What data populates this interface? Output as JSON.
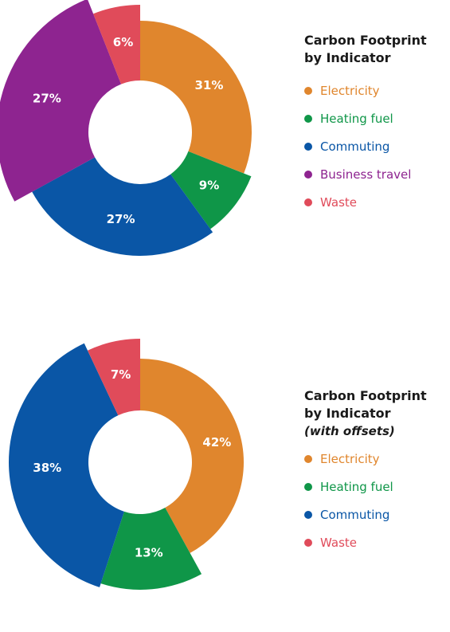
{
  "charts": [
    {
      "title_line1": "Carbon Footprint",
      "title_line2": "by Indicator",
      "subtitle": ""
    },
    {
      "title_line1": "Carbon Footprint",
      "title_line2": "by Indicator",
      "subtitle": "(with offsets)"
    }
  ],
  "chart_data": [
    {
      "type": "pie",
      "title": "Carbon Footprint by Indicator",
      "categories": [
        "Electricity",
        "Heating fuel",
        "Commuting",
        "Business travel",
        "Waste"
      ],
      "values": [
        31,
        9,
        27,
        27,
        6
      ],
      "labels": [
        "31%",
        "9%",
        "27%",
        "27%",
        "6%"
      ],
      "colors": [
        "#E0862D",
        "#0F9648",
        "#0A56A6",
        "#8E2490",
        "#E04B5A"
      ],
      "legend": "right"
    },
    {
      "type": "pie",
      "title": "Carbon Footprint by Indicator (with offsets)",
      "categories": [
        "Electricity",
        "Heating fuel",
        "Commuting",
        "Waste"
      ],
      "values": [
        42,
        13,
        38,
        7
      ],
      "labels": [
        "42%",
        "13%",
        "38%",
        "7%"
      ],
      "colors": [
        "#E0862D",
        "#0F9648",
        "#0A56A6",
        "#E04B5A"
      ],
      "legend": "right"
    }
  ]
}
